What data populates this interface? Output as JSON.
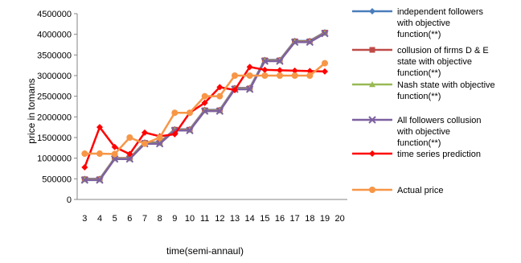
{
  "chart_data": {
    "type": "line",
    "title": "",
    "xlabel": "time(semi-annaul)",
    "ylabel": "price in tomans",
    "x_ticks": [
      3,
      4,
      5,
      6,
      7,
      8,
      9,
      10,
      11,
      12,
      13,
      14,
      15,
      16,
      17,
      18,
      19,
      20
    ],
    "y_ticks": [
      "0",
      "500000",
      "1000000",
      "1500000",
      "2000000",
      "2500000",
      "3000000",
      "3500000",
      "4000000",
      "4500000"
    ],
    "ylim": [
      0,
      4500000
    ],
    "xlim": [
      2.5,
      20.5
    ],
    "grid": false,
    "legend_position": "right",
    "x": [
      3,
      4,
      5,
      6,
      7,
      8,
      9,
      10,
      11,
      12,
      13,
      14,
      15,
      16,
      17,
      18,
      19
    ],
    "series": [
      {
        "name": "independent followers with objective function(**)",
        "legend_lines": [
          "independent followers",
          "with objective",
          "function(**)"
        ],
        "color": "#4A7EBB",
        "marker": "diamond",
        "values": [
          500000,
          500000,
          1000000,
          1000000,
          1380000,
          1380000,
          1700000,
          1700000,
          2170000,
          2170000,
          2700000,
          2700000,
          3380000,
          3380000,
          3840000,
          3840000,
          4050000
        ]
      },
      {
        "name": "collusion of firms D & E state with objective function(**)",
        "legend_lines": [
          "collusion of firms D & E",
          "state with objective",
          "function(**)"
        ],
        "color": "#BE4B48",
        "marker": "square",
        "values": [
          490000,
          490000,
          1000000,
          1000000,
          1370000,
          1370000,
          1690000,
          1690000,
          2160000,
          2160000,
          2690000,
          2690000,
          3370000,
          3370000,
          3830000,
          3830000,
          4040000
        ]
      },
      {
        "name": "Nash state with objective function(**)",
        "legend_lines": [
          "Nash state with objective",
          "function(**)"
        ],
        "color": "#98B954",
        "marker": "triangle",
        "values": [
          480000,
          480000,
          990000,
          990000,
          1360000,
          1360000,
          1680000,
          1680000,
          2150000,
          2150000,
          2680000,
          2680000,
          3360000,
          3360000,
          3820000,
          3820000,
          4030000
        ]
      },
      {
        "name": "All followers collusion with objective function(**)",
        "legend_lines": [
          "All followers collusion",
          "with objective",
          "function(**)"
        ],
        "color": "#7D60A0",
        "marker": "x",
        "values": [
          470000,
          470000,
          980000,
          980000,
          1350000,
          1350000,
          1670000,
          1670000,
          2140000,
          2140000,
          2670000,
          2670000,
          3350000,
          3350000,
          3810000,
          3810000,
          4020000
        ]
      },
      {
        "name": "time series prediction",
        "legend_lines": [
          "time series prediction"
        ],
        "color": "#FF0000",
        "marker": "diamond",
        "values": [
          780000,
          1750000,
          1270000,
          1100000,
          1620000,
          1530000,
          1580000,
          2100000,
          2340000,
          2720000,
          2650000,
          3210000,
          3140000,
          3130000,
          3120000,
          3110000,
          3100000
        ]
      },
      {
        "name": "Actual price",
        "legend_lines": [
          "Actual price"
        ],
        "color": "#F79646",
        "marker": "circle",
        "values": [
          1110000,
          1110000,
          1100000,
          1500000,
          1350000,
          1500000,
          2100000,
          2100000,
          2500000,
          2500000,
          3000000,
          3000000,
          3000000,
          3000000,
          3000000,
          3000000,
          3300000
        ]
      }
    ]
  }
}
